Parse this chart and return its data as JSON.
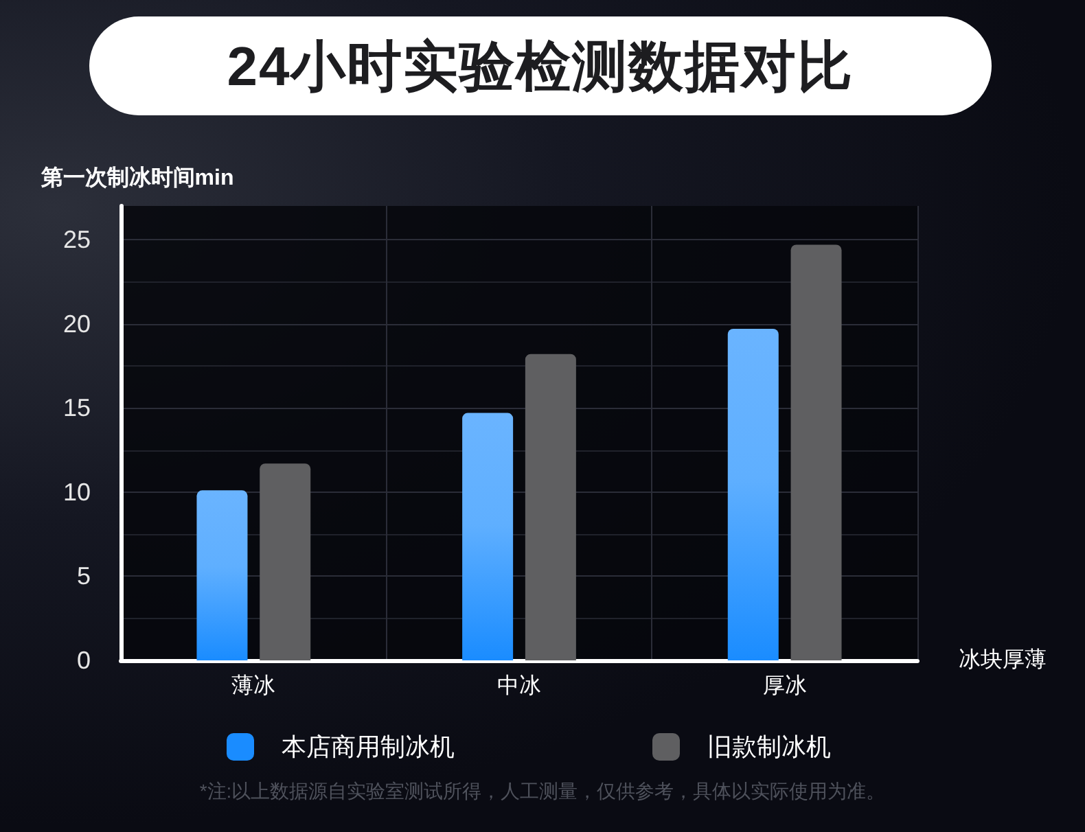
{
  "chart_data": {
    "type": "bar",
    "title": "24小时实验检测数据对比",
    "xlabel": "冰块厚薄",
    "ylabel": "第一次制冰时间min",
    "categories": [
      "薄冰",
      "中冰",
      "厚冰"
    ],
    "series": [
      {
        "name": "本店商用制冰机",
        "color": "#1a8cff",
        "values": [
          10.1,
          14.7,
          19.7
        ]
      },
      {
        "name": "旧款制冰机",
        "color": "#5f5f61",
        "values": [
          11.7,
          18.2,
          24.7
        ]
      }
    ],
    "ylim": [
      0,
      27
    ],
    "yticks": [
      0,
      5,
      10,
      15,
      20,
      25
    ],
    "grid": true,
    "legend": "bottom",
    "annotations": [
      "*注:以上数据源自实验室测试所得，人工测量，仅供参考，具体以实际使用为准。"
    ]
  }
}
